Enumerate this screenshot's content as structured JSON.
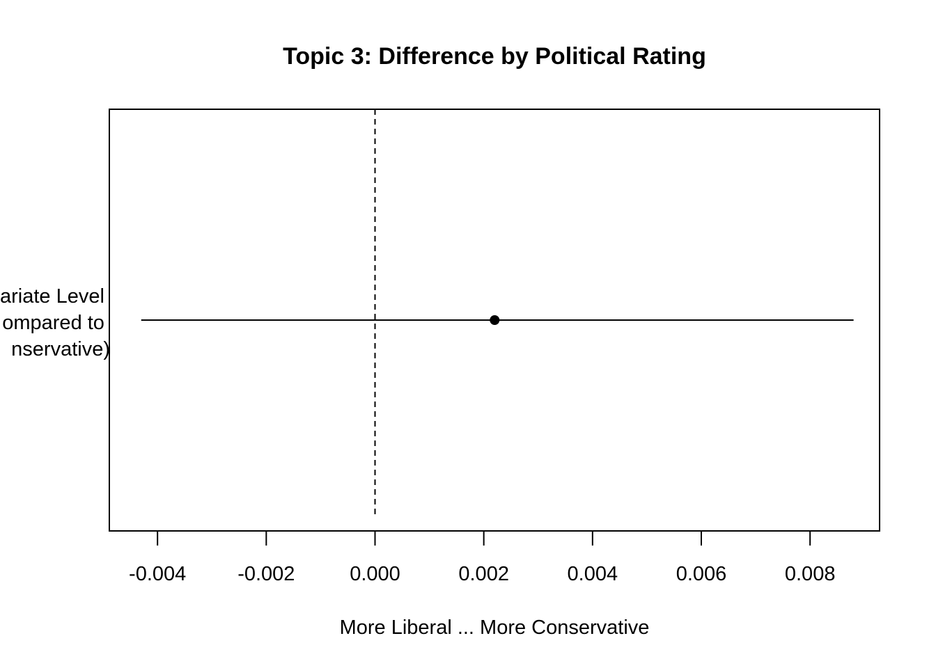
{
  "chart_data": {
    "type": "scatter",
    "title": "Topic 3: Difference by Political Rating",
    "xlabel": "More Liberal ... More Conservative",
    "ylabel": "",
    "xlim": [
      -0.0049,
      0.0093
    ],
    "x_ticks": [
      "-0.004",
      "-0.002",
      "0.000",
      "0.002",
      "0.004",
      "0.006",
      "0.008"
    ],
    "x_tick_values": [
      -0.004,
      -0.002,
      0.0,
      0.002,
      0.004,
      0.006,
      0.008
    ],
    "reference_line": {
      "x": 0.0,
      "style": "dashed"
    },
    "category_label_lines": [
      "ariate Level",
      "ompared to",
      "nservative)"
    ],
    "points": [
      {
        "estimate": 0.0022,
        "ci_low": -0.0043,
        "ci_high": 0.0088
      }
    ],
    "grid": false,
    "legend": "none"
  }
}
